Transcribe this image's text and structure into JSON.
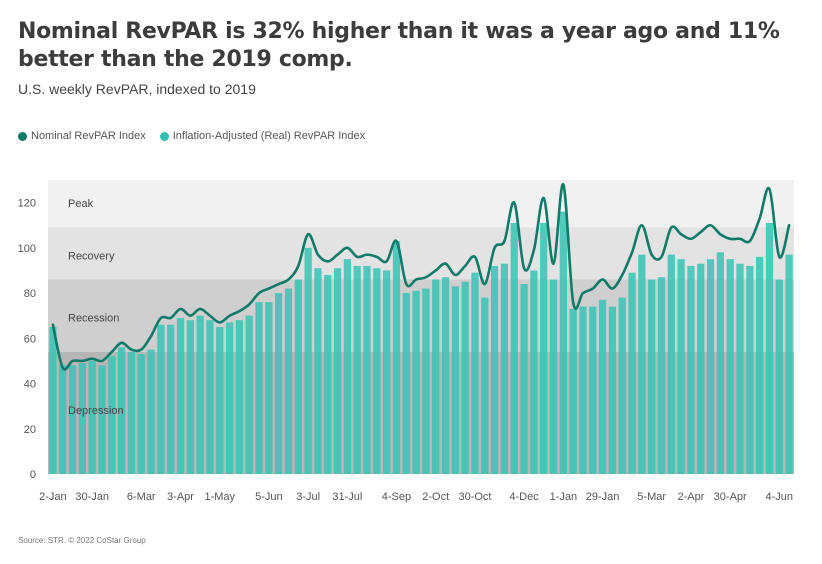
{
  "title": "Nominal RevPAR is 32% higher than it was a year ago and 11% better than the 2019 comp.",
  "subtitle": "U.S. weekly RevPAR, indexed to 2019",
  "source": "Source: STR. © 2022 CoStar Group",
  "colors": {
    "nominal": "#0e7a68",
    "real": "#2ebfb0",
    "bar": "#3cc4b6"
  },
  "legend": [
    {
      "label": "Nominal RevPAR Index",
      "color": "#0e7a68"
    },
    {
      "label": "Inflation-Adjusted (Real) RevPAR Index",
      "color": "#2ebfb0"
    }
  ],
  "chart_data": {
    "type": "bar",
    "ylim": [
      0,
      130
    ],
    "yticks": [
      0,
      20,
      40,
      60,
      80,
      100,
      120
    ],
    "grid": false,
    "legend_position": "top-left",
    "bands": [
      {
        "label": "Peak",
        "from": 109,
        "to": 130,
        "color": "#f1f1f1"
      },
      {
        "label": "Recovery",
        "from": 86,
        "to": 109,
        "color": "#e3e3e3"
      },
      {
        "label": "Recession",
        "from": 54,
        "to": 86,
        "color": "#cfcfcf"
      },
      {
        "label": "Depression",
        "from": 0,
        "to": 54,
        "color": "#b6b6b6"
      }
    ],
    "x_tick_labels": [
      {
        "index": 0,
        "label": "2-Jan"
      },
      {
        "index": 4,
        "label": "30-Jan"
      },
      {
        "index": 9,
        "label": "6-Mar"
      },
      {
        "index": 13,
        "label": "3-Apr"
      },
      {
        "index": 17,
        "label": "1-May"
      },
      {
        "index": 22,
        "label": "5-Jun"
      },
      {
        "index": 26,
        "label": "3-Jul"
      },
      {
        "index": 30,
        "label": "31-Jul"
      },
      {
        "index": 35,
        "label": "4-Sep"
      },
      {
        "index": 39,
        "label": "2-Oct"
      },
      {
        "index": 43,
        "label": "30-Oct"
      },
      {
        "index": 48,
        "label": "4-Dec"
      },
      {
        "index": 52,
        "label": "1-Jan"
      },
      {
        "index": 56,
        "label": "29-Jan"
      },
      {
        "index": 61,
        "label": "5-Mar"
      },
      {
        "index": 65,
        "label": "2-Apr"
      },
      {
        "index": 69,
        "label": "30-Apr"
      },
      {
        "index": 74,
        "label": "4-Jun"
      }
    ],
    "series": [
      {
        "name": "Inflation-Adjusted (Real) RevPAR Index",
        "type": "bar",
        "values": [
          65,
          48,
          48,
          49,
          50,
          48,
          52,
          56,
          54,
          53,
          55,
          66,
          66,
          69,
          68,
          70,
          68,
          65,
          67,
          68,
          70,
          76,
          76,
          80,
          82,
          86,
          100,
          91,
          88,
          91,
          95,
          92,
          92,
          91,
          90,
          103,
          80,
          81,
          82,
          86,
          87,
          83,
          85,
          89,
          78,
          92,
          93,
          111,
          84,
          90,
          111,
          86,
          116,
          73,
          74,
          74,
          77,
          74,
          78,
          89,
          97,
          86,
          87,
          97,
          95,
          92,
          93,
          95,
          98,
          95,
          93,
          92,
          96,
          111,
          86,
          97
        ]
      },
      {
        "name": "Nominal RevPAR Index",
        "type": "line",
        "values": [
          66,
          47,
          50,
          50,
          51,
          50,
          54,
          58,
          55,
          55,
          61,
          69,
          69,
          73,
          70,
          73,
          70,
          67,
          70,
          72,
          75,
          80,
          82,
          84,
          86,
          92,
          106,
          97,
          94,
          97,
          100,
          96,
          97,
          96,
          94,
          103,
          84,
          86,
          87,
          90,
          93,
          88,
          92,
          96,
          84,
          100,
          103,
          120,
          91,
          99,
          122,
          93,
          128,
          76,
          80,
          82,
          86,
          82,
          88,
          98,
          110,
          97,
          96,
          109,
          106,
          104,
          107,
          110,
          106,
          104,
          104,
          103,
          113,
          126,
          96,
          110
        ]
      }
    ]
  }
}
